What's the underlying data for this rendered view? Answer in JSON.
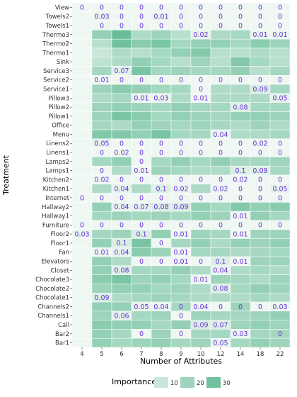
{
  "chart_data": {
    "type": "heatmap",
    "xlabel": "Number of Attributes",
    "ylabel": "Treatment",
    "x": [
      "4",
      "5",
      "6",
      "7",
      "8",
      "9",
      "10",
      "12",
      "14",
      "18",
      "22"
    ],
    "y": [
      "View",
      "Towels2",
      "Towels1",
      "Thermo3",
      "Thermo2",
      "Thermo1",
      "Sink",
      "Service3",
      "Service2",
      "Service1",
      "Pillow3",
      "Pillow2",
      "Pillow1",
      "Office",
      "Menu",
      "Linens2",
      "Linens1",
      "Lamps2",
      "Lamps1",
      "Kitchen2",
      "Kitchen1",
      "Internet",
      "Hallway2",
      "Hallway1",
      "Furniture",
      "Floor2",
      "Floor1",
      "Fan",
      "Elevators",
      "Closet",
      "Chocolate3",
      "Chocolate2",
      "Chocolate1",
      "Channels2",
      "Channels1",
      "Call",
      "Bar2",
      "Bar1"
    ],
    "importance": [
      [
        1,
        1,
        1,
        1,
        1,
        1,
        1,
        1,
        1,
        1,
        1
      ],
      [
        1,
        2,
        1,
        1,
        2,
        1,
        1,
        1,
        1,
        1,
        1
      ],
      [
        1,
        1,
        1,
        1,
        1,
        1,
        1,
        1,
        1,
        1,
        1
      ],
      [
        1,
        22,
        32,
        16,
        20,
        14,
        3,
        16,
        18,
        2,
        2
      ],
      [
        1,
        14,
        30,
        24,
        28,
        18,
        22,
        22,
        18,
        24,
        20
      ],
      [
        1,
        10,
        16,
        14,
        18,
        22,
        26,
        14,
        14,
        16,
        14
      ],
      [
        1,
        12,
        16,
        22,
        18,
        14,
        20,
        14,
        26,
        18,
        14
      ],
      [
        1,
        18,
        4,
        28,
        18,
        20,
        18,
        18,
        22,
        14,
        18
      ],
      [
        1,
        1,
        1,
        1,
        1,
        1,
        1,
        1,
        1,
        1,
        1
      ],
      [
        1,
        20,
        24,
        22,
        18,
        18,
        1,
        16,
        16,
        6,
        18
      ],
      [
        1,
        16,
        18,
        2,
        2,
        16,
        1,
        16,
        16,
        16,
        3
      ],
      [
        1,
        20,
        22,
        20,
        18,
        22,
        18,
        18,
        5,
        18,
        18
      ],
      [
        1,
        20,
        28,
        24,
        18,
        22,
        20,
        18,
        22,
        22,
        20
      ],
      [
        1,
        18,
        16,
        22,
        20,
        18,
        20,
        18,
        16,
        20,
        16
      ],
      [
        1,
        26,
        26,
        22,
        28,
        18,
        18,
        2,
        16,
        16,
        18
      ],
      [
        1,
        3,
        1,
        1,
        1,
        1,
        1,
        1,
        1,
        2,
        1
      ],
      [
        1,
        1,
        1,
        1,
        1,
        1,
        1,
        1,
        1,
        1,
        1
      ],
      [
        1,
        18,
        22,
        1,
        18,
        22,
        18,
        22,
        18,
        18,
        20
      ],
      [
        1,
        1,
        16,
        1,
        20,
        18,
        16,
        16,
        6,
        5,
        18
      ],
      [
        1,
        1,
        1,
        1,
        1,
        1,
        1,
        1,
        1,
        1,
        1
      ],
      [
        1,
        16,
        3,
        16,
        5,
        2,
        16,
        1,
        1,
        1,
        3
      ],
      [
        1,
        1,
        1,
        1,
        1,
        1,
        1,
        1,
        1,
        1,
        1
      ],
      [
        1,
        22,
        3,
        4,
        6,
        7,
        22,
        18,
        26,
        22,
        24
      ],
      [
        1,
        18,
        20,
        18,
        20,
        18,
        22,
        20,
        1,
        22,
        18
      ],
      [
        1,
        1,
        1,
        1,
        1,
        1,
        1,
        1,
        1,
        1,
        1
      ],
      [
        2,
        18,
        20,
        6,
        22,
        1,
        20,
        18,
        1,
        20,
        20
      ],
      [
        1,
        22,
        6,
        28,
        1,
        18,
        22,
        16,
        22,
        20,
        22
      ],
      [
        1,
        1,
        3,
        24,
        20,
        1,
        18,
        18,
        16,
        18,
        18
      ],
      [
        1,
        22,
        16,
        1,
        1,
        1,
        1,
        6,
        1,
        20,
        20
      ],
      [
        1,
        22,
        5,
        18,
        18,
        22,
        16,
        3,
        16,
        18,
        16
      ],
      [
        1,
        24,
        28,
        20,
        22,
        18,
        1,
        20,
        18,
        16,
        20
      ],
      [
        1,
        20,
        22,
        22,
        18,
        20,
        16,
        5,
        18,
        22,
        20
      ],
      [
        1,
        6,
        16,
        18,
        20,
        18,
        16,
        16,
        16,
        18,
        16
      ],
      [
        1,
        22,
        22,
        3,
        2,
        18,
        2,
        1,
        20,
        1,
        2
      ],
      [
        1,
        20,
        4,
        18,
        20,
        1,
        20,
        18,
        18,
        20,
        22
      ],
      [
        1,
        24,
        22,
        22,
        18,
        22,
        6,
        5,
        20,
        22,
        20
      ],
      [
        1,
        22,
        18,
        1,
        20,
        1,
        18,
        18,
        2,
        18,
        18
      ],
      [
        1,
        22,
        18,
        20,
        22,
        18,
        20,
        3,
        18,
        22,
        20
      ]
    ],
    "cell_labels": [
      [
        "0",
        "0",
        "0",
        "0",
        "0",
        "0",
        "0",
        "0",
        "0",
        "0",
        "0"
      ],
      [
        "",
        "0.03",
        "0",
        "0",
        "0.01",
        "0",
        "0",
        "0",
        "0",
        "0",
        "0"
      ],
      [
        "",
        "0",
        "0",
        "0",
        "0",
        "0",
        "0",
        "0",
        "0",
        "0",
        "0"
      ],
      [
        "",
        "",
        "",
        "",
        "",
        "",
        "0.02",
        "",
        "",
        "0.01",
        "0.01"
      ],
      [
        "",
        "",
        "",
        "",
        "",
        "",
        "",
        "",
        "",
        "",
        ""
      ],
      [
        "",
        "",
        "",
        "",
        "",
        "",
        "",
        "",
        "",
        "",
        ""
      ],
      [
        "",
        "",
        "",
        "",
        "",
        "",
        "",
        "",
        "",
        "",
        ""
      ],
      [
        "",
        "",
        "0.07",
        "",
        "",
        "",
        "",
        "",
        "",
        "",
        ""
      ],
      [
        "",
        "0.01",
        "0",
        "0",
        "0",
        "0",
        "0",
        "0",
        "0",
        "0",
        "0"
      ],
      [
        "",
        "",
        "",
        "",
        "",
        "",
        "0",
        "",
        "",
        "0.09",
        ""
      ],
      [
        "",
        "",
        "",
        "0.01",
        "0.03",
        "",
        "0.01",
        "",
        "",
        "",
        "0.05"
      ],
      [
        "",
        "",
        "",
        "",
        "",
        "",
        "",
        "",
        "0.08",
        "",
        ""
      ],
      [
        "",
        "",
        "",
        "",
        "",
        "",
        "",
        "",
        "",
        "",
        ""
      ],
      [
        "",
        "",
        "",
        "",
        "",
        "",
        "",
        "",
        "",
        "",
        ""
      ],
      [
        "",
        "",
        "",
        "",
        "",
        "",
        "",
        "0.04",
        "",
        "",
        ""
      ],
      [
        "",
        "0.05",
        "0",
        "0",
        "0",
        "0",
        "0",
        "0",
        "0",
        "0.02",
        "0"
      ],
      [
        "",
        "0",
        "0.02",
        "0",
        "0",
        "0",
        "0",
        "0",
        "0",
        "0",
        "0"
      ],
      [
        "",
        "",
        "",
        "0",
        "",
        "",
        "",
        "",
        "",
        "",
        ""
      ],
      [
        "",
        "0",
        "",
        "0.01",
        "",
        "",
        "",
        "",
        "0.1",
        "0.09",
        ""
      ],
      [
        "",
        "0.02",
        "0",
        "0",
        "0",
        "0",
        "0",
        "0",
        "0.02",
        "0",
        "0"
      ],
      [
        "",
        "",
        "0.04",
        "",
        "0.1",
        "0.02",
        "",
        "0.02",
        "0",
        "0",
        "0.05"
      ],
      [
        "0",
        "0",
        "0",
        "0",
        "0",
        "0",
        "0",
        "0",
        "0",
        "0",
        "0"
      ],
      [
        "",
        "",
        "0.04",
        "0.07",
        "0.08",
        "0.09",
        "",
        "",
        "",
        "",
        ""
      ],
      [
        "",
        "",
        "",
        "",
        "",
        "",
        "",
        "",
        "0.01",
        "",
        ""
      ],
      [
        "0",
        "0",
        "0",
        "0",
        "0",
        "0",
        "0",
        "0",
        "0",
        "0",
        "0"
      ],
      [
        "0.03",
        "",
        "",
        "0.1",
        "",
        "0.01",
        "",
        "",
        "0.01",
        "",
        ""
      ],
      [
        "",
        "",
        "0.1",
        "",
        "0",
        "",
        "",
        "",
        "",
        "",
        ""
      ],
      [
        "",
        "0.01",
        "0.04",
        "",
        "",
        "0.01",
        "",
        "",
        "",
        "",
        ""
      ],
      [
        "",
        "",
        "",
        "0",
        "0",
        "0.01",
        "0",
        "0.1",
        "0.01",
        "",
        ""
      ],
      [
        "",
        "",
        "0.08",
        "",
        "",
        "",
        "",
        "0.04",
        "",
        "",
        ""
      ],
      [
        "",
        "",
        "",
        "",
        "",
        "",
        "0.01",
        "",
        "",
        "",
        ""
      ],
      [
        "",
        "",
        "",
        "",
        "",
        "",
        "",
        "0.08",
        "",
        "",
        ""
      ],
      [
        "",
        "0.09",
        "",
        "",
        "",
        "",
        "",
        "",
        "",
        "",
        ""
      ],
      [
        "",
        "",
        "",
        "0.05",
        "0.04",
        "0",
        "0.04",
        "0",
        "0",
        "0",
        "0.03"
      ],
      [
        "",
        "",
        "0.06",
        "",
        "",
        "0",
        "",
        "",
        "",
        "",
        ""
      ],
      [
        "",
        "",
        "",
        "",
        "",
        "",
        "0.09",
        "0.07",
        "",
        "",
        ""
      ],
      [
        "",
        "",
        "",
        "0",
        "",
        "0",
        "",
        "",
        "0.03",
        "",
        "0"
      ],
      [
        "",
        "",
        "",
        "",
        "",
        "",
        "",
        "0.05",
        "",
        "",
        ""
      ]
    ],
    "legend": {
      "title": "Importance",
      "ticks": [
        "10",
        "20",
        "30"
      ],
      "tick_values": [
        10,
        20,
        30
      ],
      "placement": "bottom",
      "range": [
        0,
        35
      ],
      "low_color": "#f3f9f6",
      "high_color": "#5cb88f"
    },
    "colors": {
      "panel_background": "#ebebeb",
      "cell_label": "#6a33d8",
      "grid": "#ffffff"
    }
  }
}
